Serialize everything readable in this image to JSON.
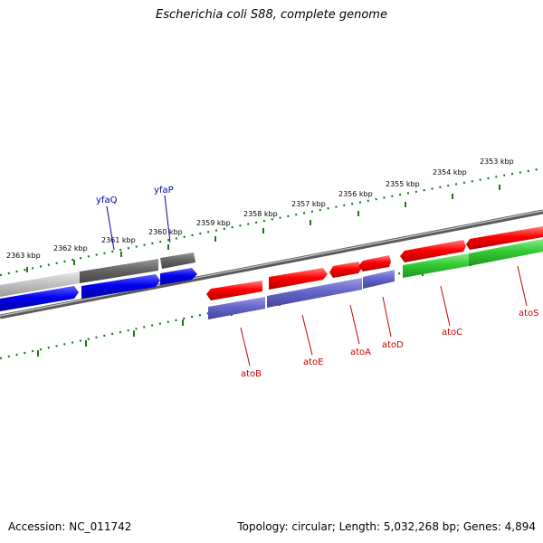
{
  "title": "Escherichia coli S88, complete genome",
  "footer": {
    "accession": "Accession: NC_011742",
    "summary": "Topology: circular; Length: 5,032,268 bp; Genes: 4,894"
  },
  "colors": {
    "scale": "#1a7a1a",
    "backbone": "#808080",
    "red": "#ff0000",
    "blue": "#0000ff",
    "purple": "#6666cc",
    "green": "#33cc33",
    "gray": "#666666",
    "light_gray": "#bbbbbb",
    "label_blue": "#0000aa",
    "label_red": "#cc0000"
  },
  "scale_labels": [
    "2363 kbp",
    "2362 kbp",
    "2361 kbp",
    "2360 kbp",
    "2359 kbp",
    "2358 kbp",
    "2357 kbp",
    "2356 kbp",
    "2355 kbp",
    "2354 kbp",
    "2353 kbp"
  ],
  "gene_labels": [
    "yfaQ",
    "yfaP",
    "atoB",
    "atoE",
    "atoA",
    "atoD",
    "atoC",
    "atoS"
  ]
}
